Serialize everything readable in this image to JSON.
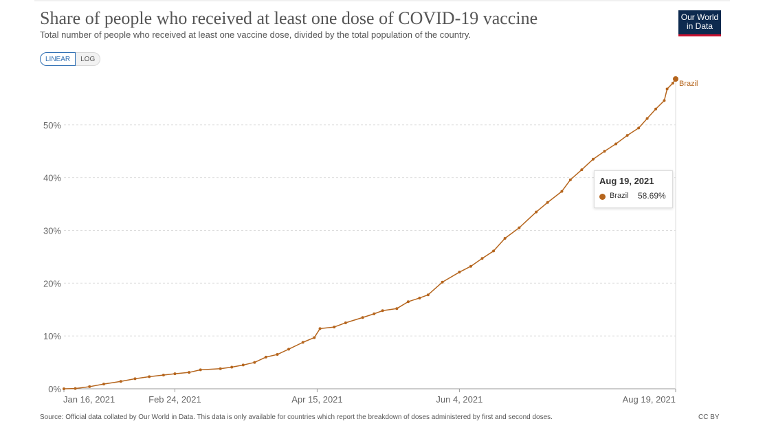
{
  "header": {
    "title": "Share of people who received at least one dose of COVID-19 vaccine",
    "subtitle": "Total number of people who received at least one vaccine dose, divided by the total population of the country.",
    "logo_text": "Our World in Data"
  },
  "scale_toggle": {
    "linear_label": "LINEAR",
    "log_label": "LOG",
    "selected": "LINEAR"
  },
  "tooltip": {
    "date": "Aug 19, 2021",
    "series_name": "Brazil",
    "value": "58.69%"
  },
  "footer": {
    "source": "Source: Official data collated by Our World in Data. This data is only available for countries which report the breakdown of doses administered by first and second doses.",
    "license": "CC BY"
  },
  "colors": {
    "series": "#b5651d",
    "grid": "#dddddd",
    "axis_text": "#666666"
  },
  "chart_data": {
    "type": "line",
    "title": "Share of people who received at least one dose of COVID-19 vaccine",
    "xlabel": "",
    "ylabel": "",
    "x_range": [
      "2021-01-16",
      "2021-08-19"
    ],
    "ylim": [
      0,
      58.69
    ],
    "y_ticks": [
      0,
      10,
      20,
      30,
      40,
      50
    ],
    "y_tick_labels": [
      "0%",
      "10%",
      "20%",
      "30%",
      "40%",
      "50%"
    ],
    "x_ticks": [
      "2021-01-16",
      "2021-02-24",
      "2021-04-15",
      "2021-06-04",
      "2021-08-19"
    ],
    "x_tick_labels": [
      "Jan 16, 2021",
      "Feb 24, 2021",
      "Apr 15, 2021",
      "Jun 4, 2021",
      "Aug 19, 2021"
    ],
    "grid": "horizontal dashed",
    "series": [
      {
        "name": "Brazil",
        "points": [
          [
            "2021-01-16",
            0.0
          ],
          [
            "2021-01-20",
            0.05
          ],
          [
            "2021-01-25",
            0.4
          ],
          [
            "2021-01-30",
            0.9
          ],
          [
            "2021-02-05",
            1.4
          ],
          [
            "2021-02-10",
            1.9
          ],
          [
            "2021-02-15",
            2.3
          ],
          [
            "2021-02-20",
            2.6
          ],
          [
            "2021-02-24",
            2.85
          ],
          [
            "2021-03-01",
            3.1
          ],
          [
            "2021-03-05",
            3.6
          ],
          [
            "2021-03-12",
            3.8
          ],
          [
            "2021-03-16",
            4.1
          ],
          [
            "2021-03-20",
            4.5
          ],
          [
            "2021-03-24",
            5.0
          ],
          [
            "2021-03-28",
            6.0
          ],
          [
            "2021-04-01",
            6.5
          ],
          [
            "2021-04-05",
            7.5
          ],
          [
            "2021-04-10",
            8.8
          ],
          [
            "2021-04-14",
            9.7
          ],
          [
            "2021-04-16",
            11.4
          ],
          [
            "2021-04-21",
            11.7
          ],
          [
            "2021-04-25",
            12.5
          ],
          [
            "2021-05-01",
            13.5
          ],
          [
            "2021-05-05",
            14.2
          ],
          [
            "2021-05-08",
            14.8
          ],
          [
            "2021-05-13",
            15.2
          ],
          [
            "2021-05-17",
            16.5
          ],
          [
            "2021-05-21",
            17.2
          ],
          [
            "2021-05-24",
            17.8
          ],
          [
            "2021-05-29",
            20.2
          ],
          [
            "2021-06-04",
            22.1
          ],
          [
            "2021-06-08",
            23.2
          ],
          [
            "2021-06-12",
            24.7
          ],
          [
            "2021-06-16",
            26.1
          ],
          [
            "2021-06-20",
            28.5
          ],
          [
            "2021-06-25",
            30.5
          ],
          [
            "2021-07-01",
            33.5
          ],
          [
            "2021-07-05",
            35.3
          ],
          [
            "2021-07-10",
            37.4
          ],
          [
            "2021-07-13",
            39.6
          ],
          [
            "2021-07-17",
            41.5
          ],
          [
            "2021-07-21",
            43.5
          ],
          [
            "2021-07-25",
            45.0
          ],
          [
            "2021-07-29",
            46.4
          ],
          [
            "2021-08-02",
            48.0
          ],
          [
            "2021-08-06",
            49.4
          ],
          [
            "2021-08-09",
            51.2
          ],
          [
            "2021-08-12",
            53.0
          ],
          [
            "2021-08-15",
            54.6
          ],
          [
            "2021-08-16",
            56.8
          ],
          [
            "2021-08-18",
            57.9
          ],
          [
            "2021-08-19",
            58.69
          ]
        ]
      }
    ]
  }
}
